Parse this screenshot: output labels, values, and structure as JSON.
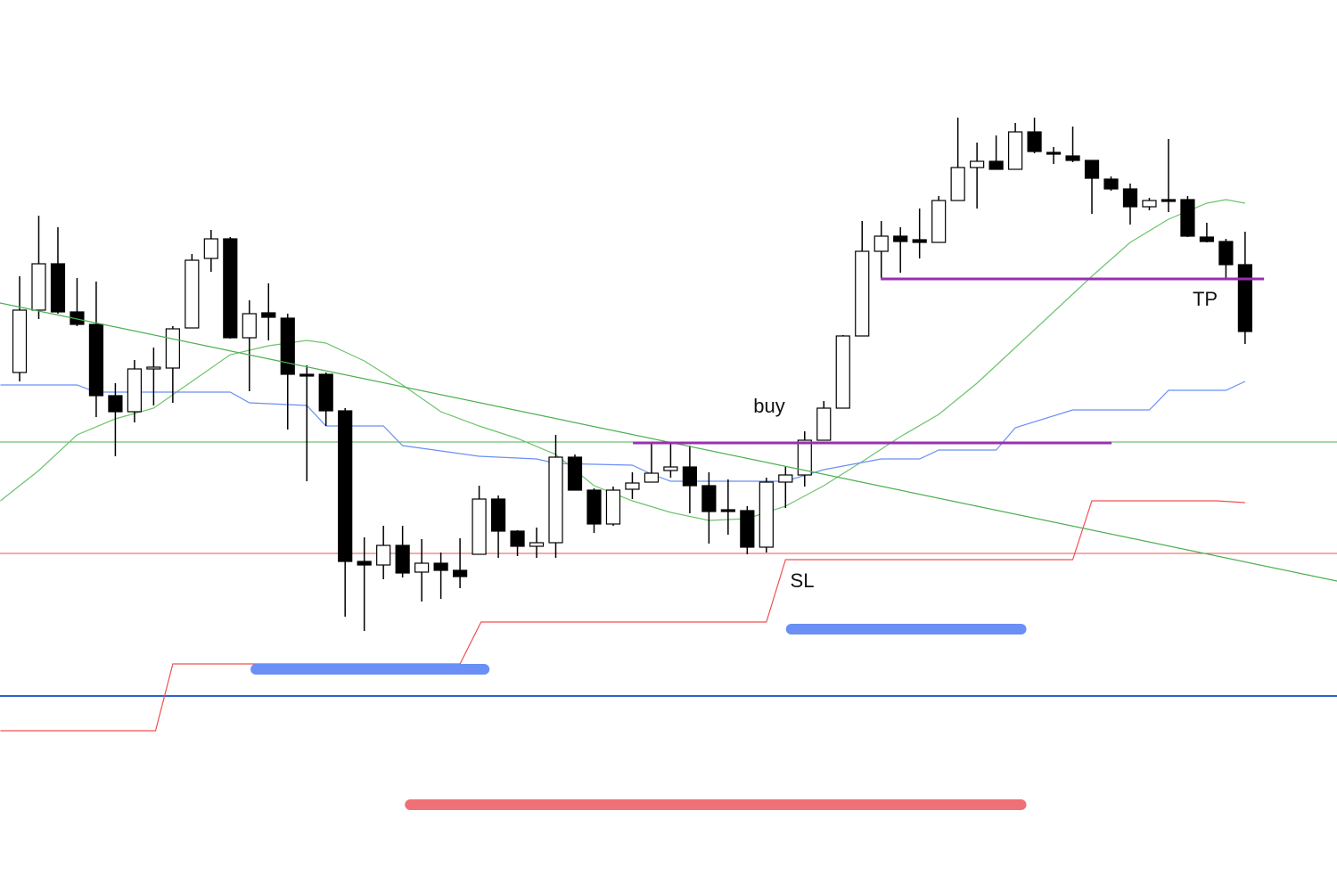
{
  "chart_data": {
    "type": "candlestick",
    "x": [
      0,
      1,
      2,
      3,
      4,
      5,
      6,
      7,
      8,
      9,
      10,
      11,
      12,
      13,
      14,
      15,
      16,
      17,
      18,
      19,
      20,
      21,
      22,
      23,
      24,
      25,
      26,
      27,
      28,
      29,
      30,
      31,
      32,
      33,
      34,
      35,
      36,
      37,
      38,
      39,
      40,
      41,
      42,
      43,
      44,
      45,
      46,
      47,
      48,
      49,
      50,
      51,
      52,
      53,
      54,
      55,
      56,
      57,
      58,
      59,
      60,
      61,
      62,
      63,
      64
    ],
    "open": [
      565,
      635,
      687,
      633,
      619,
      539,
      521,
      569,
      570,
      615,
      693,
      715,
      604,
      632,
      626,
      563,
      563,
      522,
      353,
      349,
      371,
      341,
      351,
      343,
      361,
      423,
      387,
      370,
      374,
      470,
      433,
      395,
      434,
      442,
      455,
      459,
      438,
      411,
      410,
      369,
      442,
      450,
      489,
      525,
      606,
      701,
      718,
      714,
      711,
      758,
      795,
      802,
      793,
      835,
      812,
      808,
      803,
      782,
      771,
      751,
      759,
      759,
      717,
      712,
      686
    ],
    "high": [
      673,
      741,
      728,
      671,
      667,
      553,
      579,
      593,
      617,
      698,
      725,
      717,
      646,
      665,
      631,
      573,
      565,
      525,
      380,
      393,
      393,
      378,
      363,
      379,
      438,
      427,
      388,
      391,
      495,
      473,
      435,
      437,
      453,
      485,
      487,
      483,
      453,
      445,
      415,
      447,
      460,
      499,
      533,
      607,
      735,
      735,
      728,
      749,
      763,
      851,
      823,
      831,
      845,
      851,
      818,
      841,
      803,
      785,
      777,
      761,
      827,
      763,
      733,
      715,
      723
    ],
    "low": [
      555,
      625,
      631,
      617,
      515,
      471,
      509,
      528,
      531,
      615,
      678,
      603,
      544,
      601,
      501,
      443,
      505,
      291,
      275,
      333,
      335,
      308,
      311,
      323,
      361,
      357,
      359,
      357,
      357,
      433,
      385,
      393,
      423,
      442,
      447,
      407,
      373,
      383,
      361,
      363,
      413,
      437,
      489,
      525,
      606,
      671,
      677,
      693,
      711,
      758,
      749,
      793,
      793,
      811,
      799,
      801,
      743,
      769,
      731,
      747,
      745,
      717,
      711,
      671,
      597
    ],
    "close": [
      635,
      687,
      633,
      619,
      539,
      521,
      569,
      571,
      614,
      691,
      715,
      604,
      631,
      627,
      563,
      561,
      522,
      353,
      349,
      371,
      340,
      351,
      343,
      336,
      423,
      387,
      370,
      374,
      470,
      433,
      395,
      433,
      441,
      452,
      459,
      438,
      409,
      409,
      369,
      442,
      450,
      489,
      525,
      606,
      701,
      718,
      712,
      711,
      758,
      795,
      802,
      793,
      835,
      813,
      810,
      803,
      783,
      771,
      751,
      758,
      757,
      718,
      712,
      686,
      611
    ],
    "up_color": "#ffffff",
    "down_color": "#000000",
    "xlim": [
      -1.024,
      68.8
    ],
    "ylim": [
      0,
      983
    ],
    "lines": [
      {
        "color": "#6cc46c",
        "x": [
          -1,
          1,
          3,
          5,
          7,
          9,
          11,
          13,
          15,
          16,
          18,
          20,
          22,
          24,
          26,
          28,
          30,
          32,
          34,
          36,
          38,
          40,
          42,
          44,
          46,
          48,
          50,
          52,
          54,
          56,
          58,
          60,
          62,
          63,
          64
        ],
        "values": [
          421,
          455,
          495,
          513,
          525,
          555,
          585,
          595,
          601,
          598,
          578,
          551,
          521,
          505,
          491,
          473,
          438,
          421,
          408,
          399,
          401,
          415,
          438,
          465,
          493,
          518,
          553,
          593,
          633,
          673,
          711,
          737,
          755,
          759,
          755
        ]
      },
      {
        "color": "#6a8ff5",
        "x": [
          -1,
          3,
          4,
          11,
          12,
          15,
          16,
          19,
          20,
          24,
          27,
          28,
          32,
          33,
          34,
          40,
          42,
          45,
          47,
          48,
          51,
          52,
          55,
          59,
          60,
          63,
          64
        ],
        "values": [
          551,
          551,
          543,
          543,
          531,
          528,
          505,
          505,
          483,
          471,
          468,
          463,
          461,
          451,
          443,
          443,
          456,
          468,
          468,
          478,
          478,
          503,
          523,
          523,
          545,
          545,
          555
        ]
      },
      {
        "color": "#f05050",
        "x": [
          -1,
          7.1,
          8,
          23,
          24.1,
          39,
          40,
          55,
          56,
          62.5,
          64
        ],
        "values": [
          163,
          163,
          238,
          238,
          285,
          285,
          355,
          355,
          421,
          421,
          419
        ]
      }
    ],
    "hlines": [
      {
        "color": "#4caf50",
        "value": 487
      },
      {
        "color": "#f05050",
        "value": 362
      },
      {
        "color": "#2f5fd0",
        "value": 202
      }
    ],
    "segments": [
      {
        "color": "#4caf50",
        "x": [
          -1.024,
          68.8
        ],
        "values": [
          643,
          331
        ]
      },
      {
        "color": "#9b2fb0",
        "x": [
          32.03,
          57.03
        ],
        "values": [
          486,
          486
        ]
      },
      {
        "color": "#9b2fb0",
        "x": [
          44.97,
          64.99
        ],
        "values": [
          670,
          670
        ]
      }
    ],
    "spans": [
      {
        "color": "#6a8ff5",
        "x": [
          12.34,
          24.26
        ],
        "value": 232
      },
      {
        "color": "#6a8ff5",
        "x": [
          40.3,
          52.3
        ],
        "value": 277
      },
      {
        "color": "#f07078",
        "x": [
          20.4,
          52.3
        ],
        "value": 80
      }
    ],
    "annotations": [
      "buy",
      "SL",
      "TP"
    ]
  }
}
